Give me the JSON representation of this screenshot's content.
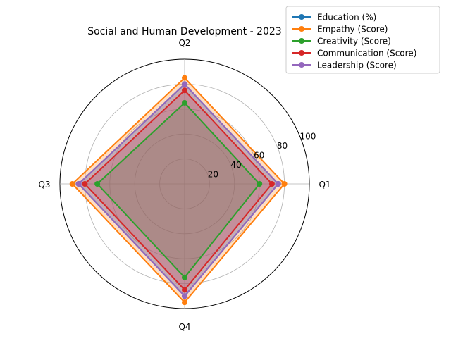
{
  "chart_data": {
    "type": "radar",
    "title": "Social and Human Development - 2023",
    "categories": [
      "Q1",
      "Q2",
      "Q3",
      "Q4"
    ],
    "rlim": [
      0,
      100
    ],
    "rticks": [
      20,
      40,
      60,
      80,
      100
    ],
    "rtick_labels": [
      "20",
      "40",
      "60",
      "80",
      "100"
    ],
    "grid": true,
    "legend_position": "top-right",
    "series": [
      {
        "name": "Education (%)",
        "color": "#1f77b4",
        "values": [
          75,
          80,
          85,
          90
        ]
      },
      {
        "name": "Empathy (Score)",
        "color": "#ff7f0e",
        "values": [
          80,
          85,
          90,
          95
        ]
      },
      {
        "name": "Creativity (Score)",
        "color": "#2ca02c",
        "values": [
          60,
          65,
          70,
          75
        ]
      },
      {
        "name": "Communication (Score)",
        "color": "#d62728",
        "values": [
          70,
          75,
          80,
          85
        ]
      },
      {
        "name": "Leadership (Score)",
        "color": "#9467bd",
        "values": [
          75,
          80,
          85,
          90
        ]
      }
    ]
  }
}
